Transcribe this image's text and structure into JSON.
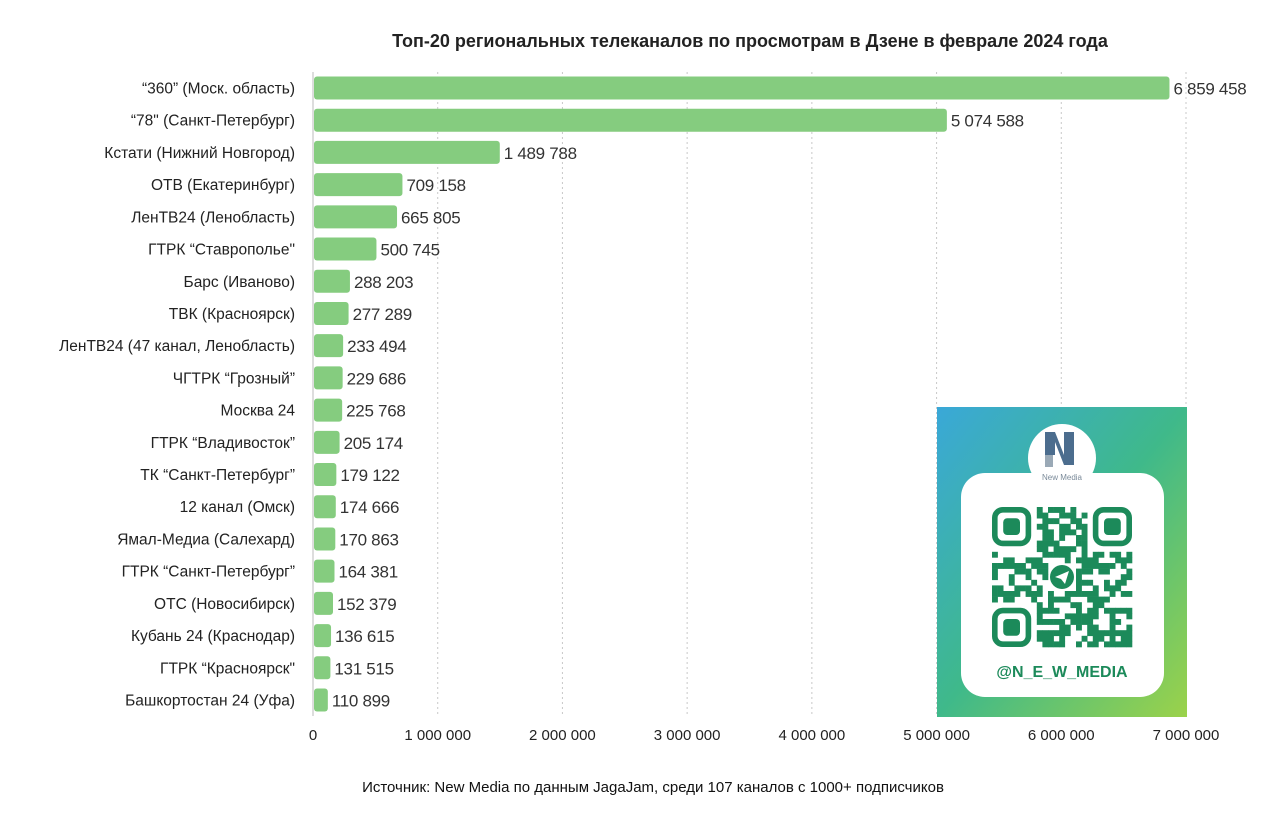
{
  "chart_data": {
    "type": "bar",
    "orientation": "horizontal",
    "title": "Топ-20 региональных телеканалов по просмотрам в Дзене в феврале 2024 года",
    "categories": [
      "“360” (Моск. область)",
      "“78\" (Санкт-Петербург)",
      "Кстати (Нижний Новгород)",
      "ОТВ (Екатеринбург)",
      "ЛенТВ24 (Ленобласть)",
      "ГТРК “Ставрополье\"",
      "Барс (Иваново)",
      "ТВК (Красноярск)",
      "ЛенТВ24 (47 канал, Ленобласть)",
      "ЧГТРК “Грозный”",
      "Москва 24",
      "ГТРК “Владивосток”",
      "ТК “Санкт-Петербург”",
      "12 канал (Омск)",
      "Ямал-Медиа (Салехард)",
      "ГТРК “Санкт-Петербург”",
      "ОТС (Новосибирск)",
      "Кубань 24 (Краснодар)",
      "ГТРК “Красноярск\"",
      "Башкортостан 24 (Уфа)"
    ],
    "values": [
      6859458,
      5074588,
      1489788,
      709158,
      665805,
      500745,
      288203,
      277289,
      233494,
      229686,
      225768,
      205174,
      179122,
      174666,
      170863,
      164381,
      152379,
      136615,
      131515,
      110899
    ],
    "value_labels": [
      "6 859 458",
      "5 074 588",
      "1 489 788",
      "709 158",
      "665 805",
      "500 745",
      "288 203",
      "277 289",
      "233 494",
      "229 686",
      "225 768",
      "205 174",
      "179 122",
      "174 666",
      "170 863",
      "164 381",
      "152 379",
      "136 615",
      "131 515",
      "110 899"
    ],
    "xlim": [
      0,
      7000000
    ],
    "xticks": [
      0,
      1000000,
      2000000,
      3000000,
      4000000,
      5000000,
      6000000,
      7000000
    ],
    "xtick_labels": [
      "0",
      "1 000 000",
      "2 000 000",
      "3 000 000",
      "4 000 000",
      "5 000 000",
      "6 000 000",
      "7 000 000"
    ],
    "grid": "vertical dotted",
    "xlabel": "",
    "ylabel": "",
    "bar_color": "#85cc7f",
    "source": "Источник: New Media по данным JagaJam, среди 107 каналов с 1000+ подписчиков"
  },
  "qr_card": {
    "logo_text": "New Media",
    "handle": "@N_E_W_MEDIA",
    "qr_color": "#1c8a5a"
  }
}
